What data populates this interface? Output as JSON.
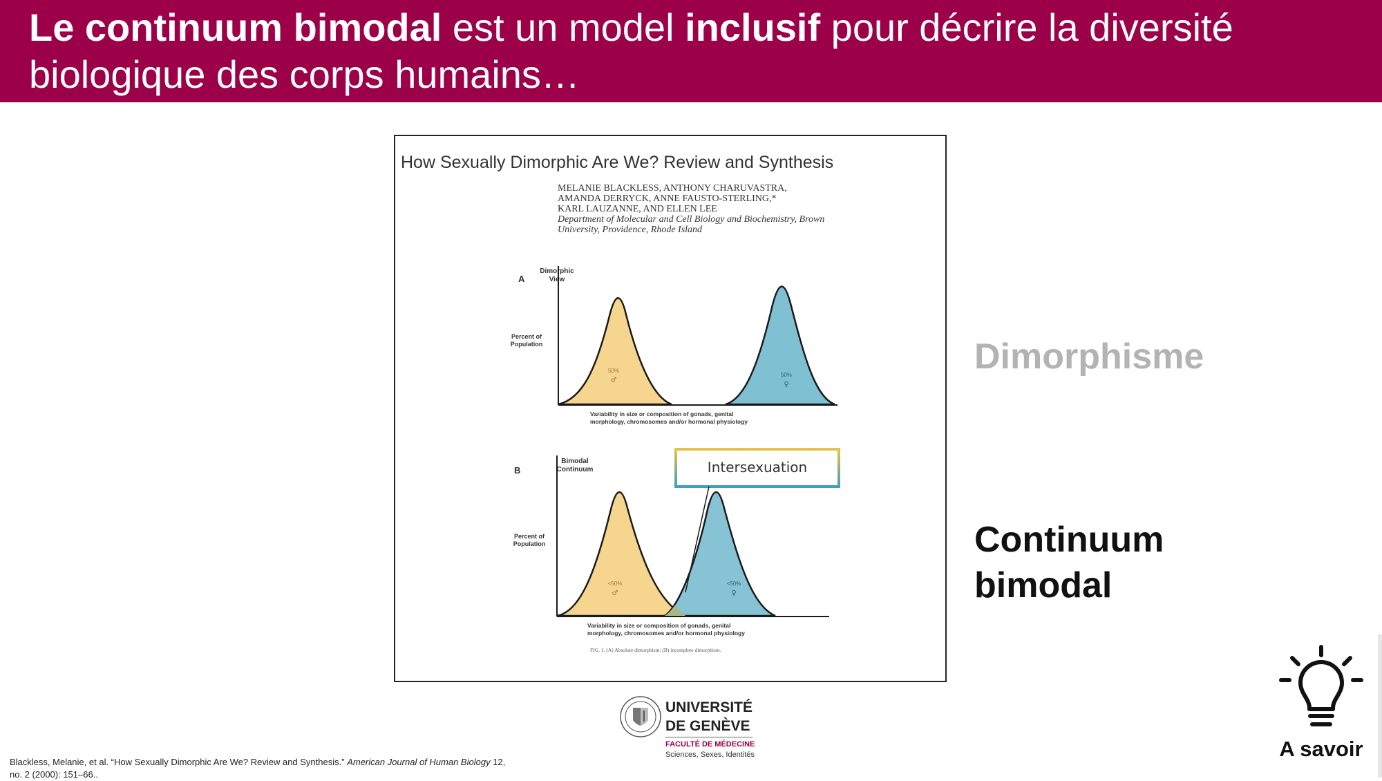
{
  "header": {
    "title_bold_1": "Le continuum bimodal",
    "title_text_1": " est un model ",
    "title_bold_2": "inclusif",
    "title_text_2": " pour décrire la diversité biologique des corps humains…",
    "color": "#9c0048"
  },
  "figure": {
    "title": "How Sexually Dimorphic Are We? Review and Synthesis",
    "authors_1": "MELANIE BLACKLESS, ANTHONY CHARUVASTRA,",
    "authors_2": "AMANDA DERRYCK, ANNE FAUSTO-STERLING,*",
    "authors_3": "KARL LAUZANNE, AND ELLEN LEE",
    "affiliation_1": "Department of Molecular and Cell Biology and Biochemistry, Brown",
    "affiliation_2": "University, Providence, Rhode Island",
    "panel_a": {
      "letter": "A",
      "label_1": "Dimorphic",
      "label_2": "View",
      "ylabel_1": "Percent of",
      "ylabel_2": "Population",
      "left_pct": "50%",
      "left_symbol": "♂",
      "right_pct": "50%",
      "right_symbol": "♀",
      "xlabel_1": "Variability in size or composition of gonads, genital",
      "xlabel_2": "morphology, chromosomes and/or hormonal physiology"
    },
    "panel_b": {
      "letter": "B",
      "label_1": "Bimodal",
      "label_2": "Continuum",
      "ylabel_1": "Percent of",
      "ylabel_2": "Population",
      "left_pct": "<50%",
      "left_symbol": "♂",
      "right_pct": "<50%",
      "right_symbol": "♀",
      "xlabel_1": "Variability in size or composition of gonads, genital",
      "xlabel_2": "morphology, chromosomes and/or hormonal physiology"
    },
    "callout": "Intersexuation",
    "caption": "FIG. 1.   (A) Absolute dimorphism; (B) incomplete dimorphism.",
    "colors": {
      "male": "#f6d58f",
      "female": "#7fc1d3",
      "overlap": "#a8b88a"
    }
  },
  "side": {
    "dimorphisme": "Dimorphisme",
    "continuum_1": "Continuum",
    "continuum_2": "bimodal"
  },
  "logo": {
    "university_1": "UNIVERSITÉ",
    "university_2": "DE GENÈVE",
    "faculty": "FACULTÉ DE MÉDECINE",
    "subtitle": "Sciences, Sexes, Identités"
  },
  "citation": {
    "part1": "Blackless, Melanie, et al.  “How Sexually Dimorphic Are We? Review and Synthesis.” ",
    "journal": "American Journal of Human Biology",
    "part2": " 12, no. 2 (2000): 151–66.."
  },
  "badge": {
    "label": "A savoir",
    "icon": "lightbulb-icon"
  }
}
